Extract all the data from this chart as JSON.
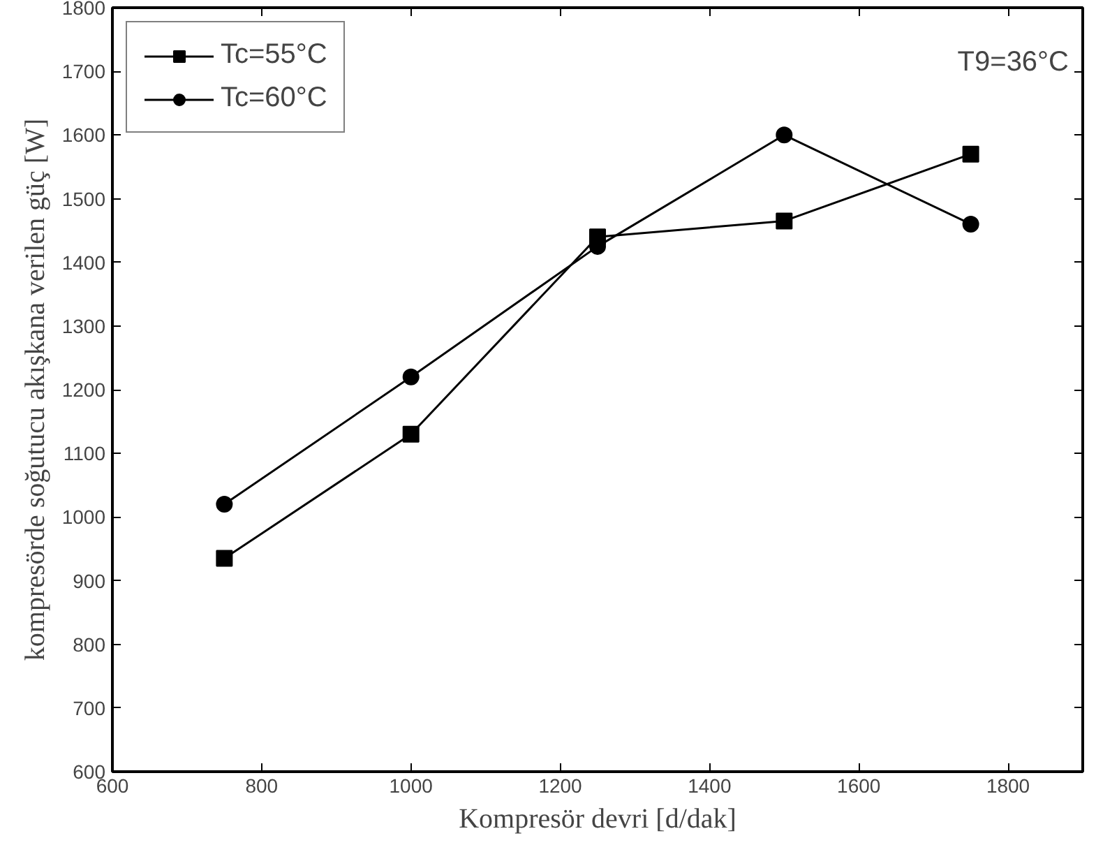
{
  "chart_data": {
    "type": "line",
    "xlabel": "Kompresör devri [d/dak]",
    "ylabel": "kompresörde soğutucu akışkana verilen güç [W]",
    "x": [
      750,
      1000,
      1250,
      1500,
      1750
    ],
    "series": [
      {
        "name": "Tc=55°C",
        "color": "#000000",
        "marker": "square",
        "values": [
          935,
          1130,
          1440,
          1465,
          1570
        ]
      },
      {
        "name": "Tc=60°C",
        "color": "#000000",
        "marker": "circle",
        "values": [
          1020,
          1220,
          1425,
          1600,
          1460
        ]
      }
    ],
    "annotations": [
      "T9=36°C"
    ],
    "xlim": [
      600,
      1900
    ],
    "xticks": [
      600,
      800,
      1000,
      1200,
      1400,
      1600,
      1800
    ],
    "ylim": [
      600,
      1800
    ],
    "yticks": [
      600,
      700,
      800,
      900,
      1000,
      1100,
      1200,
      1300,
      1400,
      1500,
      1600,
      1700,
      1800
    ],
    "grid": false,
    "legend": "top left",
    "line_style": "solid"
  }
}
